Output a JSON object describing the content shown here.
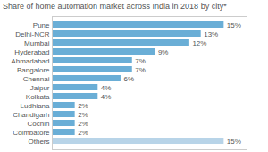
{
  "chart_data": {
    "type": "bar",
    "orientation": "horizontal",
    "title": "Share of home automation market across India in 2018 by city*",
    "categories": [
      "Others",
      "Coimbatore",
      "Cochin",
      "Chandigarh",
      "Ludhiana",
      "Kolkata",
      "Jaipur",
      "Chennai",
      "Bangalore",
      "Ahmadabad",
      "Hyderabad",
      "Mumbai",
      "Delhi-NCR",
      "Pune"
    ],
    "values": [
      15,
      2,
      2,
      2,
      2,
      4,
      4,
      6,
      7,
      7,
      9,
      12,
      13,
      15
    ],
    "value_labels": [
      "15%",
      "2%",
      "2%",
      "2%",
      "2%",
      "4%",
      "4%",
      "6%",
      "7%",
      "7%",
      "9%",
      "12%",
      "13%",
      "15%"
    ],
    "colors": [
      "#b8d4e8",
      "#6aaed6",
      "#6aaed6",
      "#6aaed6",
      "#6aaed6",
      "#6aaed6",
      "#6aaed6",
      "#6aaed6",
      "#6aaed6",
      "#6aaed6",
      "#6aaed6",
      "#6aaed6",
      "#6aaed6",
      "#6aaed6"
    ],
    "xlim": [
      0,
      17
    ],
    "data_labels": true,
    "tick_labels": "y",
    "grid": false
  }
}
